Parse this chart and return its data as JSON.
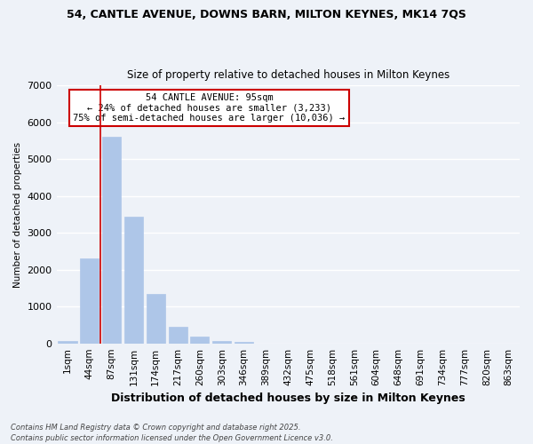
{
  "title_line1": "54, CANTLE AVENUE, DOWNS BARN, MILTON KEYNES, MK14 7QS",
  "title_line2": "Size of property relative to detached houses in Milton Keynes",
  "xlabel": "Distribution of detached houses by size in Milton Keynes",
  "ylabel": "Number of detached properties",
  "categories": [
    "1sqm",
    "44sqm",
    "87sqm",
    "131sqm",
    "174sqm",
    "217sqm",
    "260sqm",
    "303sqm",
    "346sqm",
    "389sqm",
    "432sqm",
    "475sqm",
    "518sqm",
    "561sqm",
    "604sqm",
    "648sqm",
    "691sqm",
    "734sqm",
    "777sqm",
    "820sqm",
    "863sqm"
  ],
  "values": [
    60,
    2300,
    5600,
    3450,
    1350,
    450,
    175,
    60,
    30,
    0,
    0,
    0,
    0,
    0,
    0,
    0,
    0,
    0,
    0,
    0,
    0
  ],
  "bar_color": "#aec6e8",
  "bar_edgecolor": "#aec6e8",
  "vline_x": 2,
  "vline_color": "#cc0000",
  "annotation_title": "54 CANTLE AVENUE: 95sqm",
  "annotation_line2": "← 24% of detached houses are smaller (3,233)",
  "annotation_line3": "75% of semi-detached houses are larger (10,036) →",
  "annotation_box_color": "#ffffff",
  "annotation_edgecolor": "#cc0000",
  "ylim": [
    0,
    7000
  ],
  "yticks": [
    0,
    1000,
    2000,
    3000,
    4000,
    5000,
    6000,
    7000
  ],
  "footnote_line1": "Contains HM Land Registry data © Crown copyright and database right 2025.",
  "footnote_line2": "Contains public sector information licensed under the Open Government Licence v3.0.",
  "background_color": "#eef2f8",
  "grid_color": "#ffffff"
}
